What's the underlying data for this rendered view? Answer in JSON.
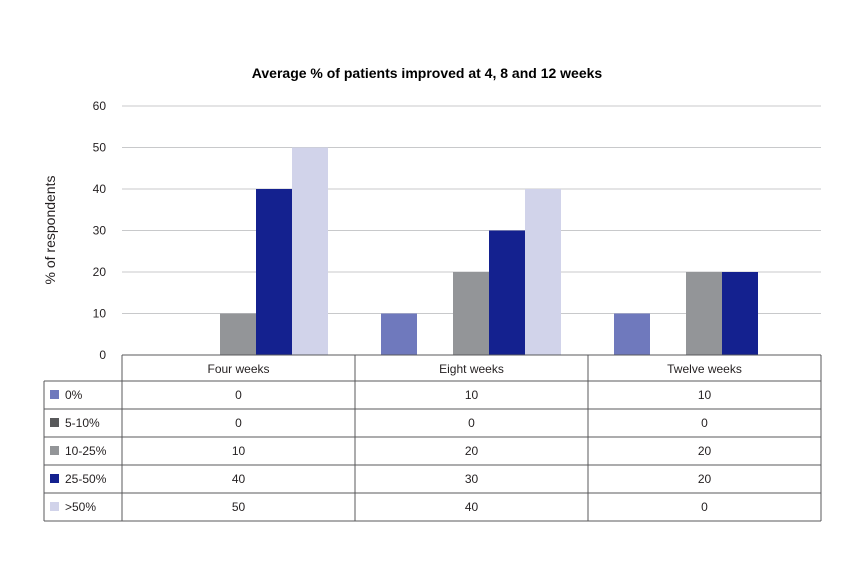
{
  "chart_data": {
    "type": "bar",
    "title": "Average % of patients improved at 4, 8 and 12 weeks",
    "ylabel": "% of respondents",
    "xlabel": "",
    "ylim": [
      0,
      60
    ],
    "yticks": [
      0,
      10,
      20,
      30,
      40,
      50,
      60
    ],
    "grid": true,
    "legend": "data-table-below",
    "categories": [
      "Four weeks",
      "Eight weeks",
      "Twelve weeks"
    ],
    "series": [
      {
        "name": "0%",
        "color": "#6f79bd",
        "values": [
          0,
          10,
          10
        ]
      },
      {
        "name": "5-10%",
        "color": "#58595b",
        "values": [
          0,
          0,
          0
        ]
      },
      {
        "name": "10-25%",
        "color": "#939598",
        "values": [
          10,
          20,
          20
        ]
      },
      {
        "name": "25-50%",
        "color": "#14218f",
        "values": [
          40,
          30,
          20
        ]
      },
      {
        "name": ">50%",
        "color": "#d1d3ea",
        "values": [
          50,
          40,
          0
        ]
      }
    ]
  }
}
